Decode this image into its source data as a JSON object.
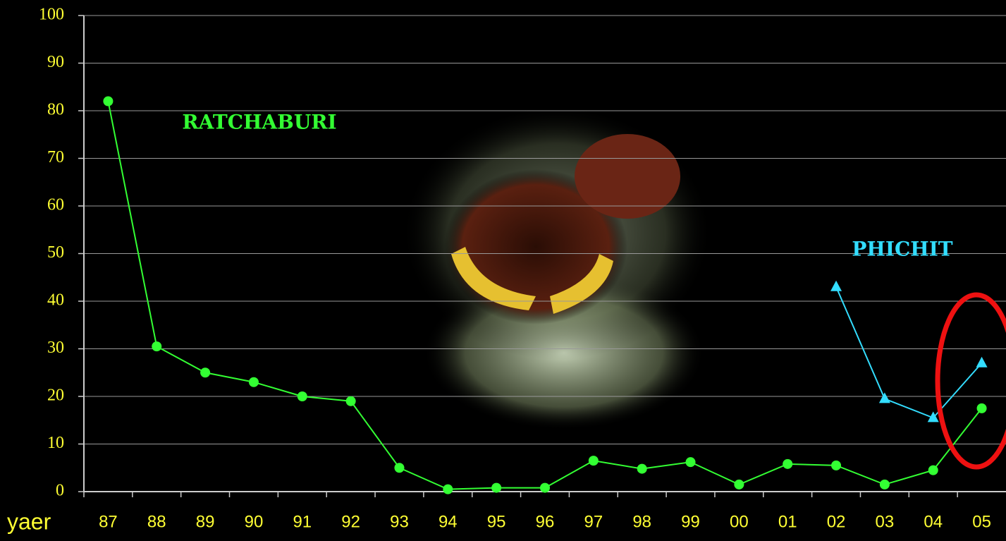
{
  "chart_data": {
    "type": "line",
    "xlabel": "yaer",
    "categories": [
      "87",
      "88",
      "89",
      "90",
      "91",
      "92",
      "93",
      "94",
      "95",
      "96",
      "97",
      "98",
      "99",
      "00",
      "01",
      "02",
      "03",
      "04",
      "05"
    ],
    "series": [
      {
        "name": "RATCHABURI",
        "color": "#33ff33",
        "marker": "circle",
        "values": [
          82,
          30.5,
          25,
          23,
          20,
          19,
          5,
          0.5,
          0.8,
          0.8,
          6.5,
          4.8,
          6.2,
          1.5,
          5.8,
          5.5,
          1.5,
          4.5,
          17.5
        ]
      },
      {
        "name": "PHICHIT",
        "color": "#33ddff",
        "marker": "triangle",
        "values": [
          null,
          null,
          null,
          null,
          null,
          null,
          null,
          null,
          null,
          null,
          null,
          null,
          null,
          null,
          null,
          43,
          19.5,
          15.5,
          27
        ]
      }
    ],
    "ylim": [
      0,
      100
    ],
    "yticks": [
      0,
      10,
      20,
      30,
      40,
      50,
      60,
      70,
      80,
      90,
      100
    ],
    "grid": true
  }
}
